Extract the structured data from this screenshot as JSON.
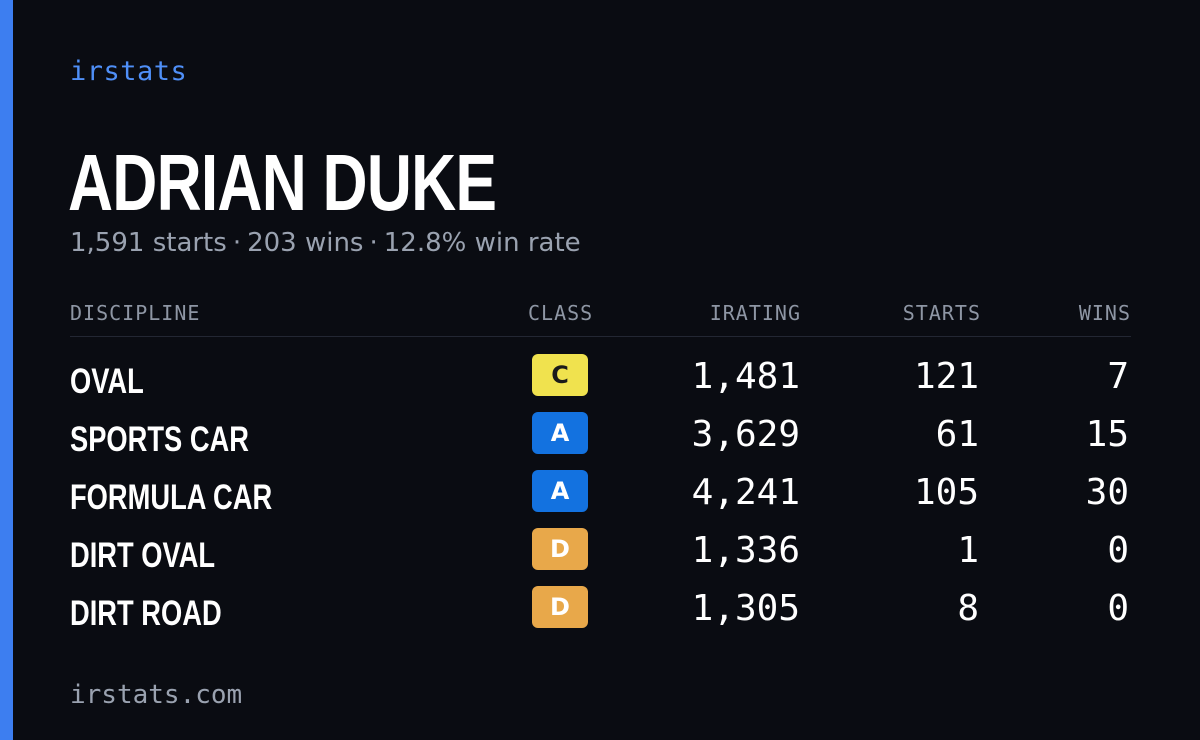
{
  "brand": "irstats",
  "driver": {
    "name": "ADRIAN DUKE",
    "starts_text": "1,591 starts",
    "wins_text": "203 wins",
    "win_rate_text": "12.8% win rate",
    "separator": "·"
  },
  "table": {
    "headers": {
      "discipline": "DISCIPLINE",
      "class": "CLASS",
      "irating": "IRATING",
      "starts": "STARTS",
      "wins": "WINS"
    },
    "rows": [
      {
        "discipline": "OVAL",
        "class": "C",
        "class_color": "#f0e24e",
        "class_text_color": "#1a1a1a",
        "irating": "1,481",
        "starts": "121",
        "wins": "7"
      },
      {
        "discipline": "SPORTS CAR",
        "class": "A",
        "class_color": "#1372e0",
        "class_text_color": "#ffffff",
        "irating": "3,629",
        "starts": "61",
        "wins": "15"
      },
      {
        "discipline": "FORMULA CAR",
        "class": "A",
        "class_color": "#1372e0",
        "class_text_color": "#ffffff",
        "irating": "4,241",
        "starts": "105",
        "wins": "30"
      },
      {
        "discipline": "DIRT OVAL",
        "class": "D",
        "class_color": "#e8a84a",
        "class_text_color": "#ffffff",
        "irating": "1,336",
        "starts": "1",
        "wins": "0"
      },
      {
        "discipline": "DIRT ROAD",
        "class": "D",
        "class_color": "#e8a84a",
        "class_text_color": "#ffffff",
        "irating": "1,305",
        "starts": "8",
        "wins": "0"
      }
    ]
  },
  "footer": "irstats.com",
  "colors": {
    "background": "#0a0c12",
    "accent": "#3d7ef0",
    "brand_text": "#4f8ff7",
    "muted_text": "#9aa2b0"
  }
}
